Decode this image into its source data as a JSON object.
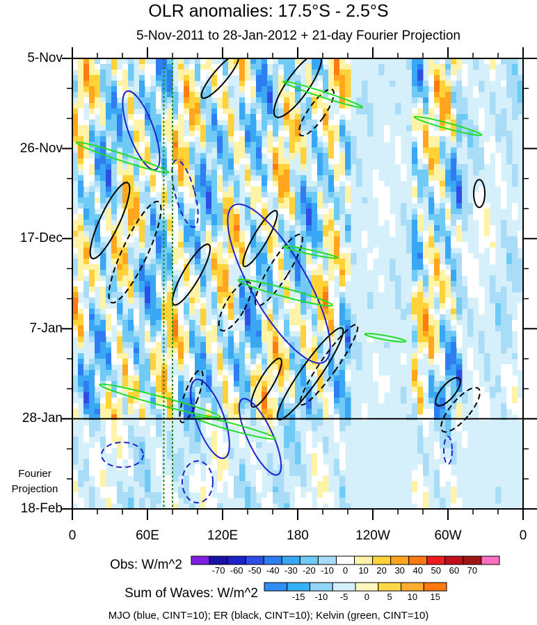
{
  "header": {
    "title": "OLR anomalies: 17.5°S - 2.5°S",
    "subtitle": "5-Nov-2011 to 28-Jan-2012 + 21-day Fourier Projection"
  },
  "chart_data": {
    "type": "heatmap",
    "title": "OLR anomalies: 17.5°S - 2.5°S",
    "subtitle": "5-Nov-2011 to 28-Jan-2012 + 21-day Fourier Projection",
    "x_tick_labels": [
      "0",
      "60E",
      "120E",
      "180",
      "120W",
      "60W",
      "0"
    ],
    "x_ticks_deg_east": [
      0,
      60,
      120,
      180,
      240,
      300,
      360
    ],
    "xlim": [
      0,
      360
    ],
    "y_tick_labels": [
      "5-Nov",
      "26-Nov",
      "17-Dec",
      "7-Jan",
      "28-Jan",
      "18-Feb"
    ],
    "ylim": [
      "2011-11-05",
      "2012-02-18"
    ],
    "observation_end": "2012-01-28",
    "projection_label": "Fourier Projection",
    "obs_colorbar": {
      "title": "Obs: W/m^2",
      "levels": [
        -70,
        -60,
        -50,
        -40,
        -30,
        -20,
        -10,
        0,
        10,
        20,
        30,
        40,
        50,
        60,
        70
      ],
      "colors": [
        "#7f1fe0",
        "#1a0fa8",
        "#1f22c8",
        "#2f4ee6",
        "#2e7ef1",
        "#3aa7f4",
        "#6fcaf6",
        "#a9dcf7",
        "#ffffff",
        "#fff3a8",
        "#ffd23a",
        "#ffa51e",
        "#ff7a10",
        "#ee1c1c",
        "#c0101a",
        "#a01616",
        "#ff6fc0"
      ]
    },
    "waves_colorbar": {
      "title": "Sum of Waves: W/m^2",
      "levels": [
        -15,
        -10,
        -5,
        0,
        5,
        10,
        15
      ],
      "colors": [
        "#2e8ef5",
        "#36b0f5",
        "#8fd5f8",
        "#d6f0fb",
        "#fff6c2",
        "#ffd84a",
        "#ffad2e",
        "#ff7a10"
      ]
    },
    "overlay_legend": "MJO (blue, CINT=10); ER (black, CINT=10); Kelvin (green, CINT=10)",
    "contour_colors": {
      "mjo": "#1f22c8",
      "er": "#000000",
      "kelvin": "#22dd22",
      "lines": "#1b8a1b"
    },
    "reference_lines_deg_east": [
      73,
      80
    ]
  },
  "footer": {
    "text": "MJO (blue, CINT=10); ER (black, CINT=10); Kelvin (green, CINT=10)"
  }
}
